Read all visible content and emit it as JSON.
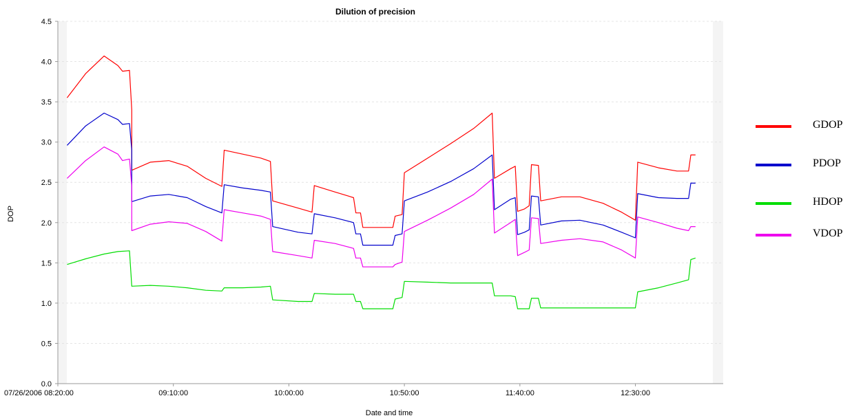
{
  "chart_data": {
    "type": "line",
    "title": "Dilution of precision",
    "xlabel": "Date and time",
    "ylabel": "DOP",
    "ylim": [
      0,
      4.5
    ],
    "yticks": [
      "0.0",
      "0.5",
      "1.0",
      "1.5",
      "2.0",
      "2.5",
      "3.0",
      "3.5",
      "4.0",
      "4.5"
    ],
    "xlim": [
      "08:20",
      "13:08"
    ],
    "xticks": [
      {
        "time": "08:20",
        "label": "07/26/2006 08:20:00"
      },
      {
        "time": "09:10",
        "label": "09:10:00"
      },
      {
        "time": "10:00",
        "label": "10:00:00"
      },
      {
        "time": "10:50",
        "label": "10:50:00"
      },
      {
        "time": "11:40",
        "label": "11:40:00"
      },
      {
        "time": "12:30",
        "label": "12:30:00"
      }
    ],
    "grid": "horizontal",
    "legend": "right",
    "series": [
      {
        "name": "GDOP",
        "color": "#ff0000",
        "points": [
          [
            "08:24",
            3.55
          ],
          [
            "08:32",
            3.85
          ],
          [
            "08:40",
            4.07
          ],
          [
            "08:46",
            3.95
          ],
          [
            "08:48",
            3.88
          ],
          [
            "08:51",
            3.89
          ],
          [
            "08:52",
            3.4
          ],
          [
            "08:52",
            2.65
          ],
          [
            "09:00",
            2.75
          ],
          [
            "09:08",
            2.77
          ],
          [
            "09:16",
            2.7
          ],
          [
            "09:24",
            2.55
          ],
          [
            "09:31",
            2.45
          ],
          [
            "09:32",
            2.9
          ],
          [
            "09:40",
            2.85
          ],
          [
            "09:48",
            2.8
          ],
          [
            "09:52",
            2.76
          ],
          [
            "09:53",
            2.27
          ],
          [
            "10:04",
            2.18
          ],
          [
            "10:10",
            2.13
          ],
          [
            "10:11",
            2.46
          ],
          [
            "10:20",
            2.38
          ],
          [
            "10:28",
            2.31
          ],
          [
            "10:29",
            2.12
          ],
          [
            "10:31",
            2.12
          ],
          [
            "10:32",
            1.94
          ],
          [
            "10:45",
            1.94
          ],
          [
            "10:46",
            2.08
          ],
          [
            "10:49",
            2.1
          ],
          [
            "10:50",
            2.62
          ],
          [
            "11:00",
            2.8
          ],
          [
            "11:10",
            2.98
          ],
          [
            "11:20",
            3.17
          ],
          [
            "11:28",
            3.36
          ],
          [
            "11:29",
            2.55
          ],
          [
            "11:36",
            2.67
          ],
          [
            "11:38",
            2.7
          ],
          [
            "11:39",
            2.14
          ],
          [
            "11:42",
            2.17
          ],
          [
            "11:44",
            2.21
          ],
          [
            "11:45",
            2.72
          ],
          [
            "11:48",
            2.71
          ],
          [
            "11:49",
            2.27
          ],
          [
            "11:58",
            2.32
          ],
          [
            "12:06",
            2.32
          ],
          [
            "12:16",
            2.24
          ],
          [
            "12:24",
            2.13
          ],
          [
            "12:30",
            2.03
          ],
          [
            "12:31",
            2.75
          ],
          [
            "12:40",
            2.68
          ],
          [
            "12:48",
            2.64
          ],
          [
            "12:53",
            2.64
          ],
          [
            "12:54",
            2.84
          ],
          [
            "12:56",
            2.84
          ]
        ]
      },
      {
        "name": "PDOP",
        "color": "#0000cc",
        "points": [
          [
            "08:24",
            2.96
          ],
          [
            "08:32",
            3.2
          ],
          [
            "08:40",
            3.36
          ],
          [
            "08:46",
            3.28
          ],
          [
            "08:48",
            3.22
          ],
          [
            "08:51",
            3.23
          ],
          [
            "08:52",
            2.9
          ],
          [
            "08:52",
            2.26
          ],
          [
            "09:00",
            2.33
          ],
          [
            "09:08",
            2.35
          ],
          [
            "09:16",
            2.31
          ],
          [
            "09:24",
            2.2
          ],
          [
            "09:31",
            2.12
          ],
          [
            "09:32",
            2.47
          ],
          [
            "09:40",
            2.43
          ],
          [
            "09:48",
            2.4
          ],
          [
            "09:52",
            2.38
          ],
          [
            "09:53",
            1.95
          ],
          [
            "10:04",
            1.88
          ],
          [
            "10:10",
            1.86
          ],
          [
            "10:11",
            2.11
          ],
          [
            "10:20",
            2.06
          ],
          [
            "10:28",
            2.0
          ],
          [
            "10:29",
            1.86
          ],
          [
            "10:31",
            1.86
          ],
          [
            "10:32",
            1.72
          ],
          [
            "10:45",
            1.72
          ],
          [
            "10:46",
            1.84
          ],
          [
            "10:49",
            1.86
          ],
          [
            "10:50",
            2.27
          ],
          [
            "11:00",
            2.38
          ],
          [
            "11:10",
            2.51
          ],
          [
            "11:20",
            2.67
          ],
          [
            "11:28",
            2.84
          ],
          [
            "11:29",
            2.16
          ],
          [
            "11:36",
            2.29
          ],
          [
            "11:38",
            2.31
          ],
          [
            "11:39",
            1.85
          ],
          [
            "11:42",
            1.88
          ],
          [
            "11:44",
            1.91
          ],
          [
            "11:45",
            2.33
          ],
          [
            "11:48",
            2.32
          ],
          [
            "11:49",
            1.97
          ],
          [
            "11:58",
            2.02
          ],
          [
            "12:06",
            2.03
          ],
          [
            "12:16",
            1.97
          ],
          [
            "12:24",
            1.88
          ],
          [
            "12:30",
            1.81
          ],
          [
            "12:31",
            2.36
          ],
          [
            "12:40",
            2.31
          ],
          [
            "12:48",
            2.3
          ],
          [
            "12:53",
            2.3
          ],
          [
            "12:54",
            2.49
          ],
          [
            "12:56",
            2.49
          ]
        ]
      },
      {
        "name": "HDOP",
        "color": "#00dd00",
        "points": [
          [
            "08:24",
            1.48
          ],
          [
            "08:32",
            1.55
          ],
          [
            "08:40",
            1.61
          ],
          [
            "08:46",
            1.64
          ],
          [
            "08:51",
            1.65
          ],
          [
            "08:52",
            1.21
          ],
          [
            "09:00",
            1.22
          ],
          [
            "09:08",
            1.21
          ],
          [
            "09:16",
            1.19
          ],
          [
            "09:24",
            1.16
          ],
          [
            "09:31",
            1.15
          ],
          [
            "09:32",
            1.19
          ],
          [
            "09:40",
            1.19
          ],
          [
            "09:48",
            1.2
          ],
          [
            "09:52",
            1.21
          ],
          [
            "09:53",
            1.04
          ],
          [
            "10:04",
            1.02
          ],
          [
            "10:10",
            1.02
          ],
          [
            "10:11",
            1.12
          ],
          [
            "10:20",
            1.11
          ],
          [
            "10:28",
            1.11
          ],
          [
            "10:29",
            1.02
          ],
          [
            "10:31",
            1.02
          ],
          [
            "10:32",
            0.93
          ],
          [
            "10:45",
            0.93
          ],
          [
            "10:46",
            1.05
          ],
          [
            "10:49",
            1.07
          ],
          [
            "10:50",
            1.27
          ],
          [
            "11:00",
            1.26
          ],
          [
            "11:10",
            1.25
          ],
          [
            "11:20",
            1.25
          ],
          [
            "11:28",
            1.25
          ],
          [
            "11:29",
            1.09
          ],
          [
            "11:36",
            1.09
          ],
          [
            "11:38",
            1.08
          ],
          [
            "11:39",
            0.93
          ],
          [
            "11:44",
            0.93
          ],
          [
            "11:45",
            1.06
          ],
          [
            "11:48",
            1.06
          ],
          [
            "11:49",
            0.94
          ],
          [
            "12:06",
            0.94
          ],
          [
            "12:30",
            0.94
          ],
          [
            "12:31",
            1.14
          ],
          [
            "12:40",
            1.19
          ],
          [
            "12:48",
            1.25
          ],
          [
            "12:53",
            1.29
          ],
          [
            "12:54",
            1.54
          ],
          [
            "12:56",
            1.56
          ]
        ]
      },
      {
        "name": "VDOP",
        "color": "#ee00ee",
        "points": [
          [
            "08:24",
            2.55
          ],
          [
            "08:32",
            2.77
          ],
          [
            "08:40",
            2.94
          ],
          [
            "08:46",
            2.85
          ],
          [
            "08:48",
            2.77
          ],
          [
            "08:51",
            2.79
          ],
          [
            "08:52",
            2.45
          ],
          [
            "08:52",
            1.9
          ],
          [
            "09:00",
            1.98
          ],
          [
            "09:08",
            2.01
          ],
          [
            "09:16",
            1.99
          ],
          [
            "09:24",
            1.89
          ],
          [
            "09:31",
            1.77
          ],
          [
            "09:32",
            2.16
          ],
          [
            "09:40",
            2.12
          ],
          [
            "09:48",
            2.08
          ],
          [
            "09:52",
            2.04
          ],
          [
            "09:53",
            1.64
          ],
          [
            "10:04",
            1.59
          ],
          [
            "10:10",
            1.56
          ],
          [
            "10:11",
            1.78
          ],
          [
            "10:20",
            1.74
          ],
          [
            "10:28",
            1.68
          ],
          [
            "10:29",
            1.56
          ],
          [
            "10:31",
            1.56
          ],
          [
            "10:32",
            1.45
          ],
          [
            "10:45",
            1.45
          ],
          [
            "10:46",
            1.48
          ],
          [
            "10:49",
            1.51
          ],
          [
            "10:50",
            1.89
          ],
          [
            "11:00",
            2.03
          ],
          [
            "11:10",
            2.18
          ],
          [
            "11:20",
            2.35
          ],
          [
            "11:28",
            2.54
          ],
          [
            "11:29",
            1.87
          ],
          [
            "11:36",
            2.0
          ],
          [
            "11:38",
            2.04
          ],
          [
            "11:39",
            1.59
          ],
          [
            "11:42",
            1.63
          ],
          [
            "11:44",
            1.66
          ],
          [
            "11:45",
            2.06
          ],
          [
            "11:48",
            2.05
          ],
          [
            "11:49",
            1.74
          ],
          [
            "11:58",
            1.78
          ],
          [
            "12:06",
            1.8
          ],
          [
            "12:16",
            1.76
          ],
          [
            "12:24",
            1.66
          ],
          [
            "12:30",
            1.56
          ],
          [
            "12:31",
            2.07
          ],
          [
            "12:40",
            2.0
          ],
          [
            "12:48",
            1.93
          ],
          [
            "12:53",
            1.9
          ],
          [
            "12:54",
            1.95
          ],
          [
            "12:56",
            1.95
          ]
        ]
      }
    ]
  }
}
